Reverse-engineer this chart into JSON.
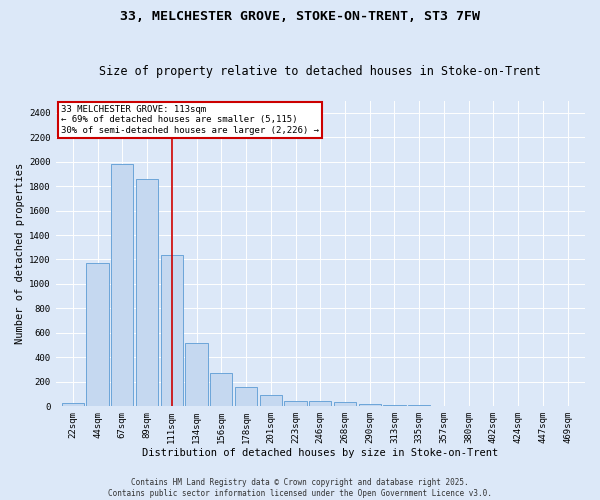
{
  "title": "33, MELCHESTER GROVE, STOKE-ON-TRENT, ST3 7FW",
  "subtitle": "Size of property relative to detached houses in Stoke-on-Trent",
  "xlabel": "Distribution of detached houses by size in Stoke-on-Trent",
  "ylabel": "Number of detached properties",
  "categories": [
    "22sqm",
    "44sqm",
    "67sqm",
    "89sqm",
    "111sqm",
    "134sqm",
    "156sqm",
    "178sqm",
    "201sqm",
    "223sqm",
    "246sqm",
    "268sqm",
    "290sqm",
    "313sqm",
    "335sqm",
    "357sqm",
    "380sqm",
    "402sqm",
    "424sqm",
    "447sqm",
    "469sqm"
  ],
  "values": [
    28,
    1170,
    1980,
    1860,
    1240,
    520,
    275,
    155,
    92,
    45,
    40,
    38,
    22,
    10,
    6,
    4,
    3,
    3,
    2,
    2,
    2
  ],
  "bar_color": "#c5d8f0",
  "bar_edge_color": "#5b9bd5",
  "vline_x_index": 4,
  "vline_color": "#cc0000",
  "annotation_text": "33 MELCHESTER GROVE: 113sqm\n← 69% of detached houses are smaller (5,115)\n30% of semi-detached houses are larger (2,226) →",
  "annotation_box_color": "#ffffff",
  "annotation_box_edge": "#cc0000",
  "ylim": [
    0,
    2500
  ],
  "yticks": [
    0,
    200,
    400,
    600,
    800,
    1000,
    1200,
    1400,
    1600,
    1800,
    2000,
    2200,
    2400
  ],
  "background_color": "#dce8f8",
  "grid_color": "#ffffff",
  "footer_line1": "Contains HM Land Registry data © Crown copyright and database right 2025.",
  "footer_line2": "Contains public sector information licensed under the Open Government Licence v3.0.",
  "title_fontsize": 9.5,
  "subtitle_fontsize": 8.5,
  "axis_label_fontsize": 7.5,
  "tick_fontsize": 6.5,
  "annotation_fontsize": 6.5,
  "footer_fontsize": 5.5
}
